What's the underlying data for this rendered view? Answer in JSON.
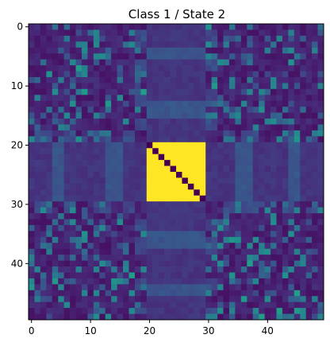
{
  "chart_data": {
    "type": "heatmap",
    "title": "Class 1 / State 2",
    "xlabel": "",
    "ylabel": "",
    "shape": [
      50,
      50
    ],
    "xlim": [
      0,
      49
    ],
    "ylim": [
      0,
      49
    ],
    "x_ticks": [
      0,
      10,
      20,
      30,
      40
    ],
    "y_ticks": [
      0,
      10,
      20,
      30,
      40
    ],
    "colormap": "viridis",
    "value_range": [
      0,
      1
    ],
    "description_values": {
      "block_rows": [
        20,
        29
      ],
      "block_cols": [
        20,
        29
      ],
      "block_value": 1.0,
      "diagonal_in_block": 0.0,
      "background_base": 0.12
    }
  }
}
